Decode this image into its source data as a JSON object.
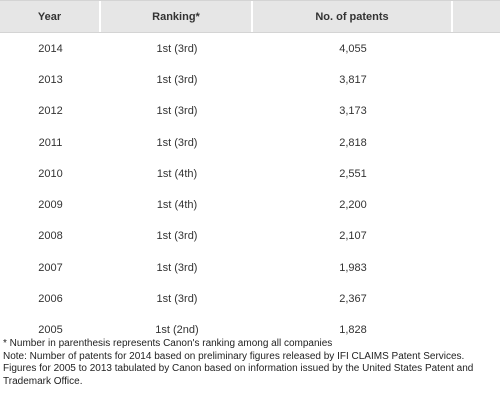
{
  "table": {
    "headers": [
      "Year",
      "Ranking*",
      "No. of patents",
      ""
    ],
    "rows": [
      {
        "year": "2014",
        "ranking": "1st (3rd)",
        "patents": "4,055"
      },
      {
        "year": "2013",
        "ranking": "1st (3rd)",
        "patents": "3,817"
      },
      {
        "year": "2012",
        "ranking": "1st (3rd)",
        "patents": "3,173"
      },
      {
        "year": "2011",
        "ranking": "1st (3rd)",
        "patents": "2,818"
      },
      {
        "year": "2010",
        "ranking": "1st (4th)",
        "patents": "2,551"
      },
      {
        "year": "2009",
        "ranking": "1st (4th)",
        "patents": "2,200"
      },
      {
        "year": "2008",
        "ranking": "1st (3rd)",
        "patents": "2,107"
      },
      {
        "year": "2007",
        "ranking": "1st (3rd)",
        "patents": "1,983"
      },
      {
        "year": "2006",
        "ranking": "1st (3rd)",
        "patents": "2,367"
      },
      {
        "year": "2005",
        "ranking": "1st (2nd)",
        "patents": "1,828"
      }
    ]
  },
  "notes": {
    "footnote": "* Number in parenthesis represents Canon's ranking among all companies",
    "note": "Note: Number of patents for 2014 based on preliminary figures released by IFI CLAIMS Patent Services. Figures for 2005 to 2013 tabulated by Canon based on information issued by the United States Patent and Trademark Office."
  }
}
